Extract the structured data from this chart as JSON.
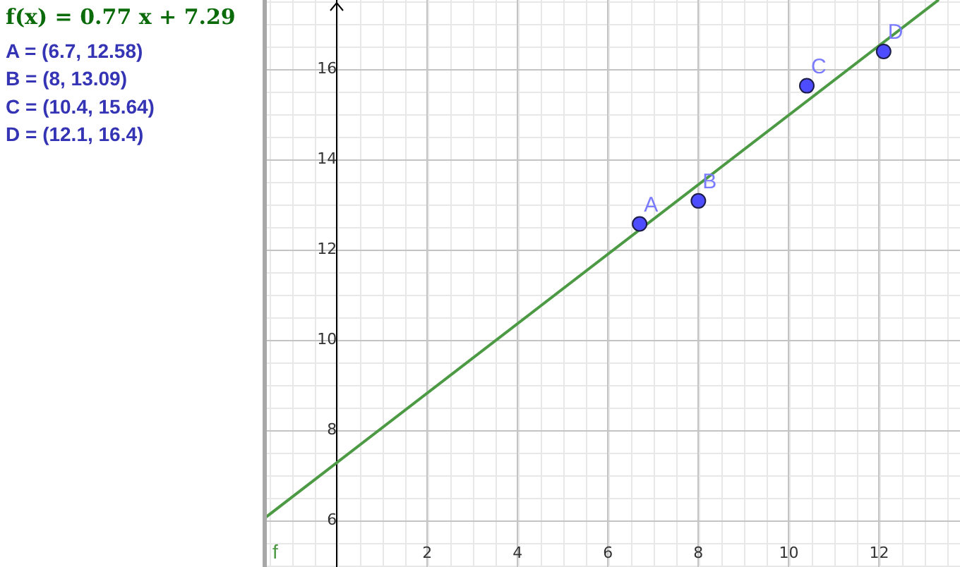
{
  "chart_data": {
    "type": "scatter",
    "annotations": [
      "f(x) = 0.77 x + 7.29",
      "A = (6.7, 12.58)",
      "B = (8, 13.09)",
      "C = (10.4, 15.64)",
      "D = (12.1, 16.4)",
      {
        "text": "A",
        "x": 6.7,
        "y": 12.58
      },
      {
        "text": "B",
        "x": 8,
        "y": 13.09
      },
      {
        "text": "C",
        "x": 10.4,
        "y": 15.64
      },
      {
        "text": "D",
        "x": 12.1,
        "y": 16.4
      }
    ],
    "xlim": [
      -1.55,
      13.79
    ],
    "ylim": [
      4.98,
      17.54
    ],
    "xticks": [
      2,
      4,
      6,
      8,
      10,
      12
    ],
    "yticks": [
      6,
      8,
      10,
      12,
      14,
      16
    ],
    "grid": true,
    "legend": false,
    "series": [
      {
        "type": "scatter",
        "color": "#4d4dff",
        "x": [
          6.7,
          8,
          10.4,
          12.1
        ],
        "values": [
          12.58,
          13.09,
          15.64,
          16.4
        ],
        "marker": "circle"
      },
      {
        "type": "line",
        "name": "f",
        "color": "#4d9a45",
        "x": [
          -1.55,
          13.3
        ],
        "values": [
          6.1,
          17.53
        ],
        "marker": "none"
      }
    ]
  }
}
